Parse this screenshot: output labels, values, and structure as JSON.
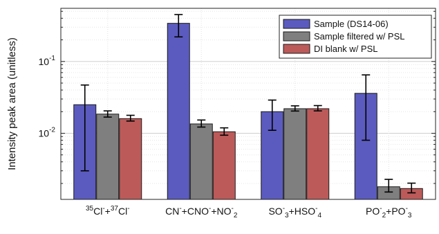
{
  "chart_data": {
    "type": "bar",
    "yscale": "log",
    "ylabel": "Intensity peak area (unitless)",
    "ylim": [
      0.0012,
      0.55
    ],
    "ytick_labels": [
      {
        "base": "10",
        "exp": "-2",
        "value": 0.01
      },
      {
        "base": "10",
        "exp": "-1",
        "value": 0.1
      }
    ],
    "grid": true,
    "legend_position": "top-right",
    "categories": [
      {
        "parts": [
          {
            "t": "35",
            "s": "sup"
          },
          {
            "t": "Cl"
          },
          {
            "t": "-",
            "s": "sup"
          },
          {
            "t": "+"
          },
          {
            "t": "37",
            "s": "sup"
          },
          {
            "t": "Cl"
          },
          {
            "t": "-",
            "s": "sup"
          }
        ]
      },
      {
        "parts": [
          {
            "t": "CN"
          },
          {
            "t": "-",
            "s": "sup"
          },
          {
            "t": "+CNO"
          },
          {
            "t": "-",
            "s": "sup"
          },
          {
            "t": "+NO"
          },
          {
            "t": "-",
            "s": "sup"
          },
          {
            "t": "2",
            "s": "sub"
          }
        ]
      },
      {
        "parts": [
          {
            "t": "SO"
          },
          {
            "t": "-",
            "s": "sup"
          },
          {
            "t": "3",
            "s": "sub"
          },
          {
            "t": "+HSO"
          },
          {
            "t": "-",
            "s": "sup"
          },
          {
            "t": "4",
            "s": "sub"
          }
        ]
      },
      {
        "parts": [
          {
            "t": "PO"
          },
          {
            "t": "-",
            "s": "sup"
          },
          {
            "t": "2",
            "s": "sub"
          },
          {
            "t": "+PO"
          },
          {
            "t": "-",
            "s": "sup"
          },
          {
            "t": "3",
            "s": "sub"
          }
        ]
      }
    ],
    "series": [
      {
        "name": "Sample (DS14-06)",
        "color": "#5b5bbf",
        "values": [
          0.025,
          0.34,
          0.02,
          0.036
        ],
        "err_low": [
          0.003,
          0.22,
          0.011,
          0.008
        ],
        "err_high": [
          0.047,
          0.45,
          0.029,
          0.065
        ]
      },
      {
        "name": "Sample filtered w/ PSL",
        "color": "#7f7f7f",
        "values": [
          0.0185,
          0.0135,
          0.022,
          0.0018
        ],
        "err_low": [
          0.0168,
          0.0122,
          0.0204,
          0.00152
        ],
        "err_high": [
          0.0205,
          0.0153,
          0.0241,
          0.00228
        ]
      },
      {
        "name": "DI blank w/ PSL",
        "color": "#bc5a5a",
        "values": [
          0.016,
          0.0105,
          0.022,
          0.0017
        ],
        "err_low": [
          0.0148,
          0.0094,
          0.0205,
          0.00148
        ],
        "err_high": [
          0.0178,
          0.0119,
          0.0243,
          0.00202
        ]
      }
    ]
  }
}
